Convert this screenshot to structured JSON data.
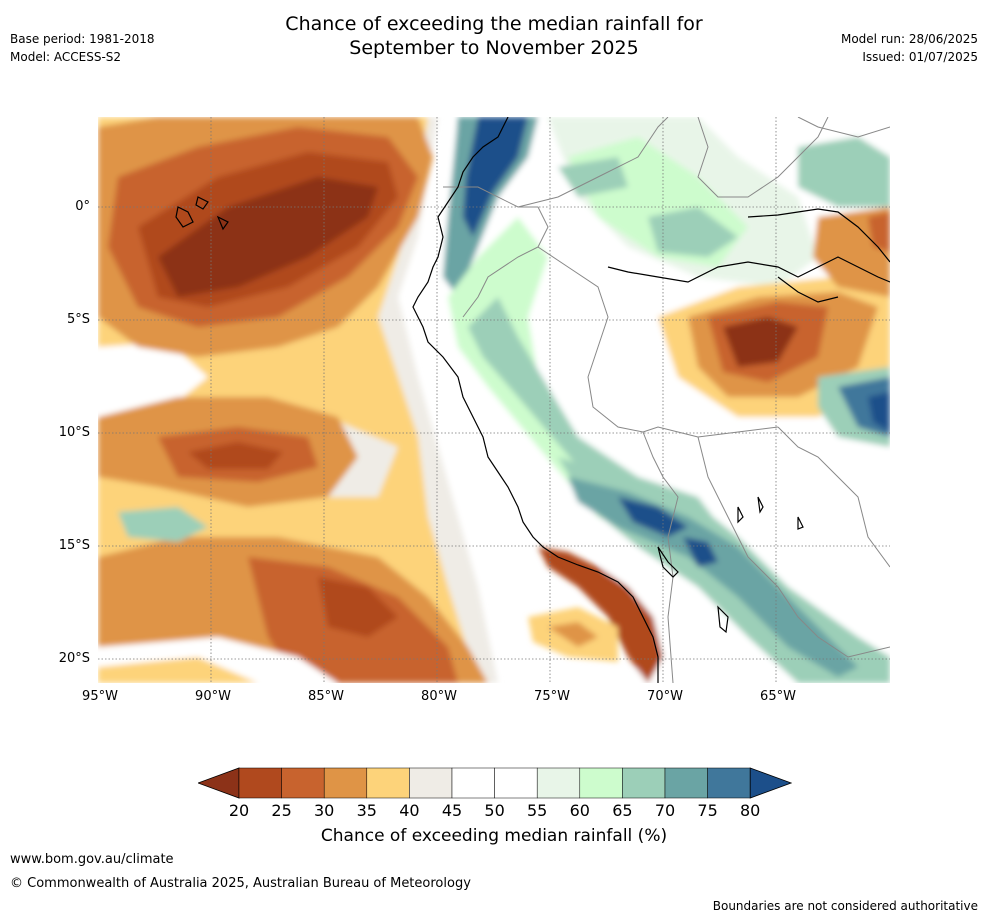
{
  "title": {
    "line1": "Chance of exceeding the median rainfall for",
    "line2": "September to November 2025"
  },
  "meta_left": {
    "base_period": "Base period: 1981-2018",
    "model": "Model: ACCESS-S2"
  },
  "meta_right": {
    "model_run": "Model run: 28/06/2025",
    "issued": "Issued: 01/07/2025"
  },
  "lat_labels": [
    "0°",
    "5°S",
    "10°S",
    "15°S",
    "20°S"
  ],
  "lon_labels": [
    "95°W",
    "90°W",
    "85°W",
    "80°W",
    "75°W",
    "70°W",
    "65°W"
  ],
  "colorbar": {
    "ticks": [
      "20",
      "25",
      "30",
      "35",
      "40",
      "45",
      "50",
      "55",
      "60",
      "65",
      "70",
      "75",
      "80"
    ],
    "colors": [
      "#8c3218",
      "#b0491e",
      "#c8632e",
      "#df9446",
      "#fdd37a",
      "#efece6",
      "#ffffff",
      "#ffffff",
      "#e8f5e8",
      "#cdfccd",
      "#9ccfb8",
      "#6aa4a4",
      "#40779b",
      "#1c4f8a"
    ],
    "label": "Chance of exceeding median rainfall (%)"
  },
  "footer": {
    "url": "www.bom.gov.au/climate",
    "copyright": "© Commonwealth of Australia 2025, Australian Bureau of Meteorology",
    "note": "Boundaries are not considered authoritative"
  }
}
